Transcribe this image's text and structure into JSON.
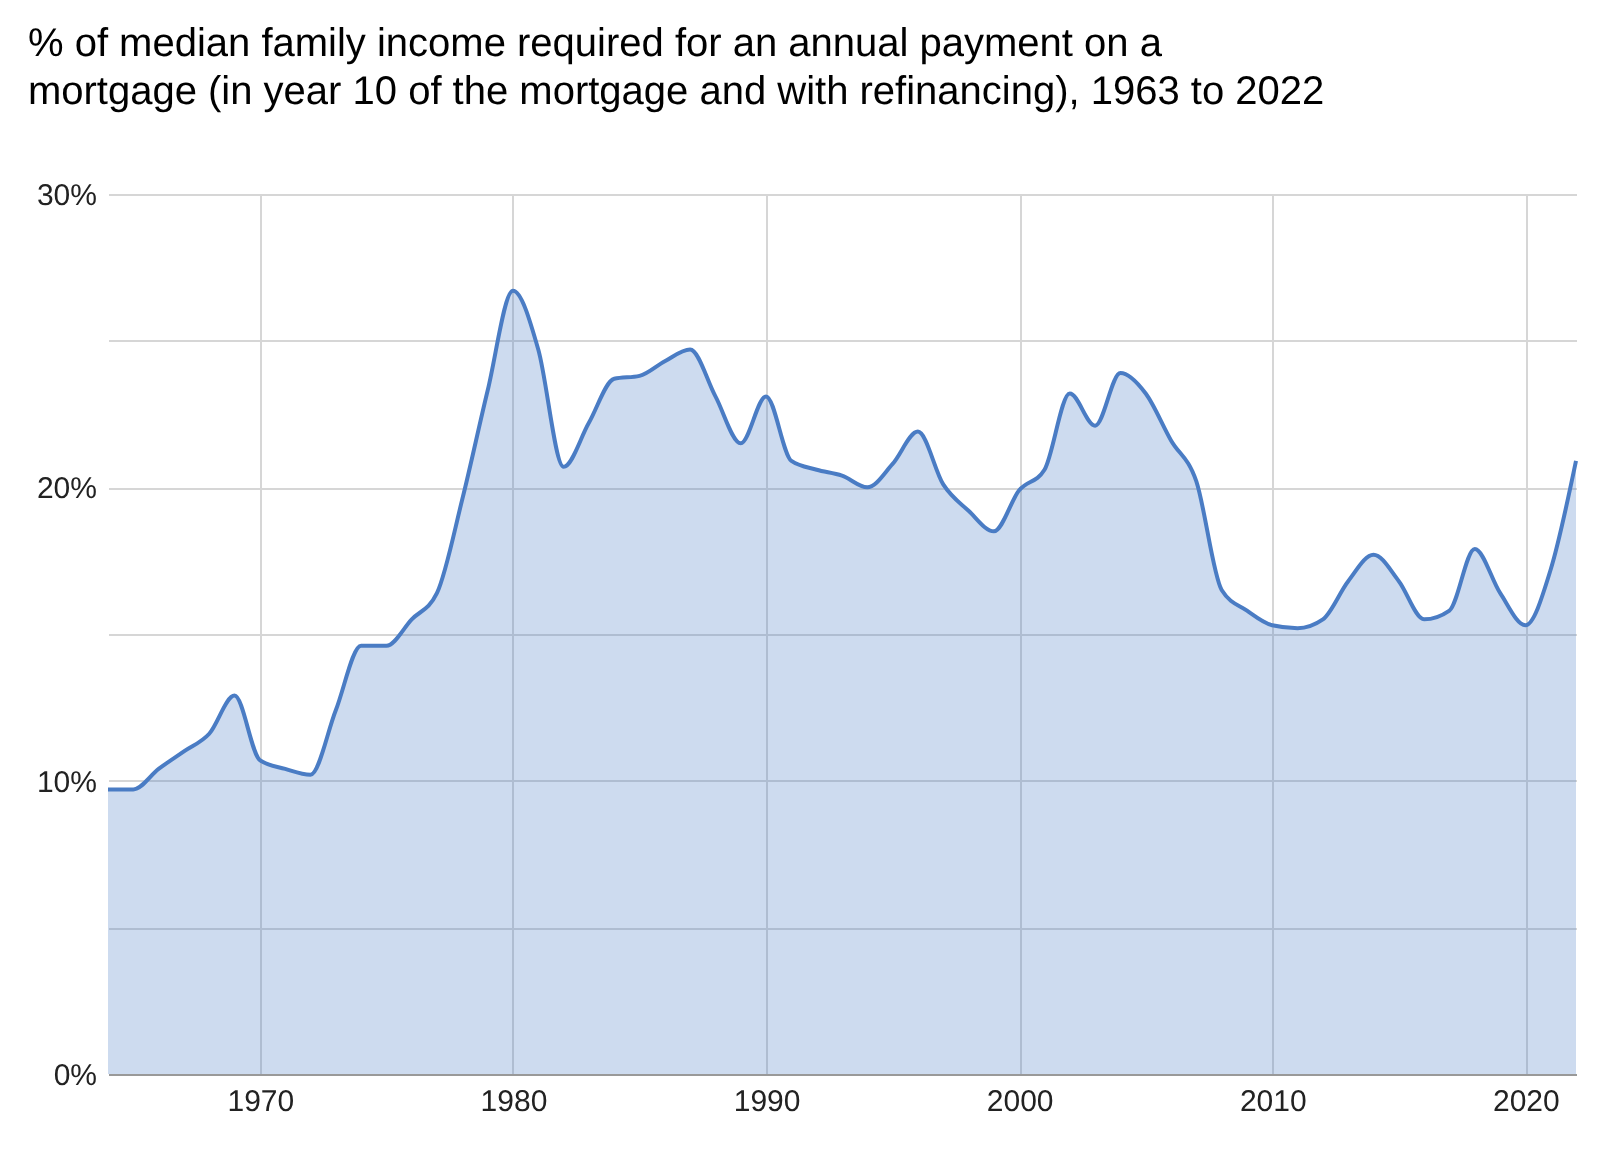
{
  "chart_data": {
    "type": "area",
    "title": "% of median family income required for an annual payment on a\nmortgage (in year 10 of the mortgage and with refinancing), 1963 to 2022",
    "x": [
      1964,
      1965,
      1966,
      1967,
      1968,
      1969,
      1970,
      1971,
      1972,
      1973,
      1974,
      1975,
      1976,
      1977,
      1978,
      1979,
      1980,
      1981,
      1982,
      1983,
      1984,
      1985,
      1986,
      1987,
      1988,
      1989,
      1990,
      1991,
      1992,
      1993,
      1994,
      1995,
      1996,
      1997,
      1998,
      1999,
      2000,
      2001,
      2002,
      2003,
      2004,
      2005,
      2006,
      2007,
      2008,
      2009,
      2010,
      2011,
      2012,
      2013,
      2014,
      2015,
      2016,
      2017,
      2018,
      2019,
      2020,
      2021,
      2022
    ],
    "series": [
      {
        "color": "#4a7cc4",
        "values": [
          9.7,
          9.7,
          10.4,
          11.0,
          11.6,
          12.9,
          10.7,
          10.4,
          10.2,
          12.4,
          14.6,
          14.6,
          15.5,
          16.4,
          19.6,
          23.3,
          26.7,
          24.7,
          20.7,
          22.2,
          23.7,
          23.8,
          24.3,
          24.7,
          23.1,
          21.5,
          23.1,
          20.9,
          20.6,
          20.4,
          20.0,
          20.8,
          21.9,
          20.1,
          19.2,
          18.5,
          19.9,
          20.6,
          23.2,
          22.1,
          23.9,
          23.2,
          21.6,
          20.2,
          16.5,
          15.8,
          15.3,
          15.2,
          15.5,
          16.8,
          17.7,
          16.8,
          15.5,
          15.8,
          17.9,
          16.4,
          15.3,
          17.2,
          20.9
        ]
      }
    ],
    "xlim": [
      1964,
      2022
    ],
    "xticks": [
      1970,
      1980,
      1990,
      2000,
      2010,
      2020
    ],
    "ylim": [
      0,
      30
    ],
    "yticks": [
      {
        "value": 0,
        "label": "0%"
      },
      {
        "value": 5,
        "label": null
      },
      {
        "value": 10,
        "label": "10%"
      },
      {
        "value": 15,
        "label": null
      },
      {
        "value": 20,
        "label": "20%"
      },
      {
        "value": 25,
        "label": null
      },
      {
        "value": 30,
        "label": "30%"
      }
    ],
    "grid": true
  }
}
